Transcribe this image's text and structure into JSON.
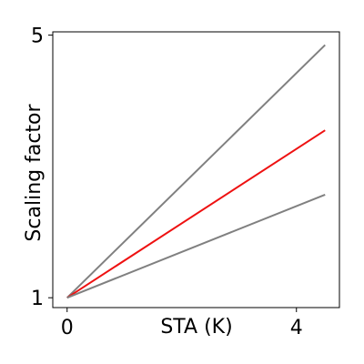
{
  "chart_data": {
    "type": "line",
    "title": "",
    "xlabel": "STA (K)",
    "ylabel": "Scaling factor",
    "xlim": [
      -0.25,
      4.75
    ],
    "ylim": [
      0.85,
      5.05
    ],
    "x_ticks": [
      0,
      4
    ],
    "x_tick_labels": [
      "0",
      "4"
    ],
    "y_ticks": [
      1,
      5
    ],
    "y_tick_labels": [
      "1",
      "5"
    ],
    "grid": false,
    "legend": "none",
    "series": [
      {
        "color": "#808080",
        "x": [
          0,
          4.5
        ],
        "y": [
          1,
          4.85
        ]
      },
      {
        "color": "#ee1111",
        "x": [
          0,
          4.5
        ],
        "y": [
          1,
          3.55
        ]
      },
      {
        "color": "#808080",
        "x": [
          0,
          4.5
        ],
        "y": [
          1,
          2.57
        ]
      }
    ]
  }
}
